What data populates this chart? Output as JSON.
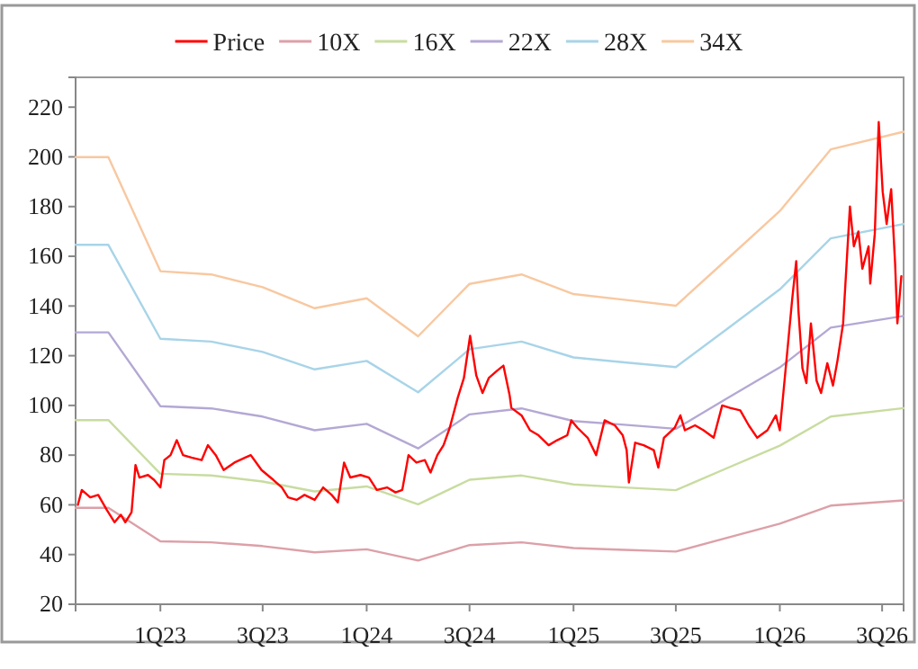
{
  "chart_data": {
    "type": "line",
    "xlim": [
      "2022-08-04",
      "2026-08-08"
    ],
    "ylim": [
      20,
      232
    ],
    "xticks": [
      {
        "value": "2023-01-01",
        "label": "1Q23"
      },
      {
        "value": "2023-07-01",
        "label": "3Q23"
      },
      {
        "value": "2024-01-01",
        "label": "1Q24"
      },
      {
        "value": "2024-07-01",
        "label": "3Q24"
      },
      {
        "value": "2025-01-01",
        "label": "1Q25"
      },
      {
        "value": "2025-07-01",
        "label": "3Q25"
      },
      {
        "value": "2026-01-01",
        "label": "1Q26"
      },
      {
        "value": "2026-07-01",
        "label": "3Q26"
      }
    ],
    "yticks": [
      20,
      40,
      60,
      80,
      100,
      120,
      140,
      160,
      180,
      200,
      220
    ],
    "legend": "top",
    "grid": false,
    "marker": "none",
    "line_style": "solid",
    "x": [
      "2022-08-04",
      "2022-10-01",
      "2023-01-01",
      "2023-04-01",
      "2023-07-01",
      "2023-10-01",
      "2024-01-01",
      "2024-04-01",
      "2024-07-01",
      "2024-10-01",
      "2025-01-01",
      "2025-04-01",
      "2025-07-01",
      "2025-10-01",
      "2026-01-01",
      "2026-04-01",
      "2026-08-08"
    ],
    "series": [
      {
        "name": "Price",
        "color": "#ff0000",
        "x": [
          "2022-08-08",
          "2022-08-15",
          "2022-08-30",
          "2022-09-13",
          "2022-09-28",
          "2022-10-12",
          "2022-10-23",
          "2022-10-31",
          "2022-11-11",
          "2022-11-18",
          "2022-11-25",
          "2022-12-10",
          "2022-12-21",
          "2023-01-01",
          "2023-01-08",
          "2023-01-19",
          "2023-01-30",
          "2023-02-10",
          "2023-02-25",
          "2023-03-15",
          "2023-03-26",
          "2023-04-09",
          "2023-04-23",
          "2023-05-12",
          "2023-05-31",
          "2023-06-10",
          "2023-06-29",
          "2023-07-20",
          "2023-08-04",
          "2023-08-15",
          "2023-08-30",
          "2023-09-13",
          "2023-10-01",
          "2023-10-16",
          "2023-10-31",
          "2023-11-11",
          "2023-11-22",
          "2023-12-03",
          "2023-12-21",
          "2024-01-05",
          "2024-01-19",
          "2024-02-06",
          "2024-02-21",
          "2024-03-04",
          "2024-03-15",
          "2024-03-29",
          "2024-04-13",
          "2024-04-23",
          "2024-05-05",
          "2024-05-16",
          "2024-05-27",
          "2024-06-10",
          "2024-06-21",
          "2024-07-02",
          "2024-07-13",
          "2024-07-24",
          "2024-08-04",
          "2024-08-19",
          "2024-08-30",
          "2024-09-10",
          "2024-09-13",
          "2024-10-01",
          "2024-10-16",
          "2024-10-31",
          "2024-11-18",
          "2024-12-03",
          "2024-12-21",
          "2024-12-28",
          "2025-01-08",
          "2025-01-26",
          "2025-02-10",
          "2025-02-25",
          "2025-03-15",
          "2025-03-29",
          "2025-04-05",
          "2025-04-09",
          "2025-04-20",
          "2025-05-05",
          "2025-05-23",
          "2025-05-31",
          "2025-06-10",
          "2025-06-29",
          "2025-07-09",
          "2025-07-17",
          "2025-08-04",
          "2025-08-19",
          "2025-09-06",
          "2025-09-21",
          "2025-10-05",
          "2025-10-23",
          "2025-11-07",
          "2025-11-22",
          "2025-12-10",
          "2025-12-25",
          "2026-01-01",
          "2026-01-16",
          "2026-01-23",
          "2026-01-30",
          "2026-02-03",
          "2026-02-10",
          "2026-02-17",
          "2026-02-25",
          "2026-03-07",
          "2026-03-15",
          "2026-03-26",
          "2026-04-05",
          "2026-04-13",
          "2026-04-23",
          "2026-05-05",
          "2026-05-12",
          "2026-05-20",
          "2026-05-27",
          "2026-06-07",
          "2026-06-10",
          "2026-06-18",
          "2026-06-25",
          "2026-07-02",
          "2026-07-09",
          "2026-07-17",
          "2026-07-24",
          "2026-07-28",
          "2026-08-04"
        ],
        "values": [
          60,
          66,
          63,
          64,
          58,
          53,
          56,
          53,
          57,
          76,
          71,
          72,
          70,
          67,
          78,
          80,
          86,
          80,
          79,
          78,
          84,
          80,
          74,
          77,
          79,
          80,
          74,
          70,
          67,
          63,
          62,
          64,
          62,
          67,
          64,
          61,
          77,
          71,
          72,
          71,
          66,
          67,
          65,
          66,
          80,
          77,
          78,
          73,
          80,
          84,
          91,
          103,
          111,
          128,
          112,
          105,
          111,
          114,
          116,
          104,
          99,
          96,
          90,
          88,
          84,
          86,
          88,
          94,
          91,
          87,
          80,
          94,
          92,
          88,
          82,
          69,
          85,
          84,
          82,
          75,
          87,
          91,
          96,
          90,
          92,
          90,
          87,
          100,
          99,
          98,
          92,
          87,
          90,
          96,
          90,
          126,
          143,
          158,
          138,
          115,
          109,
          133,
          110,
          105,
          117,
          108,
          118,
          133,
          180,
          164,
          170,
          155,
          164,
          149,
          169,
          214,
          186,
          173,
          187,
          157,
          133,
          152
        ]
      },
      {
        "name": "10X",
        "color": "#dca0a8",
        "values": [
          58.8,
          58.8,
          45.3,
          44.9,
          43.4,
          40.9,
          42.1,
          37.6,
          43.8,
          44.9,
          42.6,
          41.9,
          41.2,
          46.8,
          52.4,
          59.7,
          61.8
        ]
      },
      {
        "name": "16X",
        "color": "#c8dca0",
        "values": [
          94.1,
          94.1,
          72.5,
          71.8,
          69.4,
          65.4,
          67.4,
          60.2,
          70.1,
          71.8,
          68.2,
          67.0,
          65.9,
          74.9,
          83.8,
          95.5,
          98.9
        ]
      },
      {
        "name": "22X",
        "color": "#b4a8d4",
        "values": [
          129.4,
          129.4,
          99.7,
          98.8,
          95.5,
          90.0,
          92.6,
          82.7,
          96.4,
          98.8,
          93.7,
          92.2,
          90.6,
          103.0,
          115.3,
          131.3,
          136.0
        ]
      },
      {
        "name": "28X",
        "color": "#a8d4e8",
        "values": [
          164.6,
          164.6,
          126.8,
          125.7,
          121.5,
          114.5,
          117.9,
          105.3,
          122.6,
          125.7,
          119.3,
          117.3,
          115.4,
          131.0,
          146.7,
          167.2,
          173.0
        ]
      },
      {
        "name": "34X",
        "color": "#f8c8a0",
        "values": [
          199.9,
          199.9,
          154.0,
          152.7,
          147.6,
          139.1,
          143.1,
          127.8,
          148.9,
          152.7,
          144.8,
          142.5,
          140.1,
          159.1,
          178.2,
          203.0,
          210.1
        ]
      }
    ]
  }
}
